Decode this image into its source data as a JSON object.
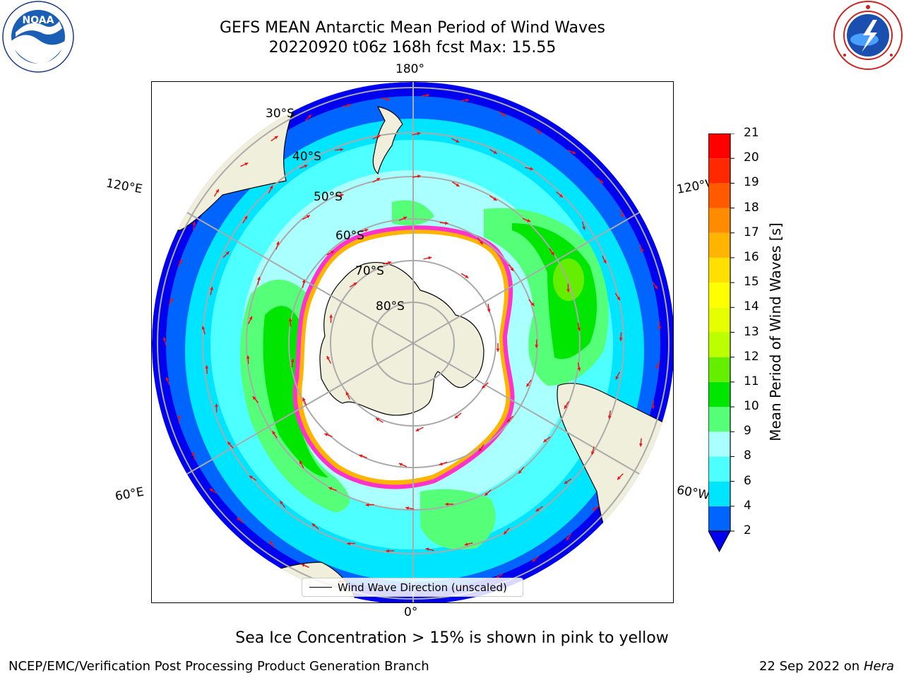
{
  "title_line1": "GEFS MEAN Antarctic Mean Period of Wind Waves",
  "title_line2": "20220920 t06z 168h fcst   Max: 15.55",
  "longitude_labels": {
    "top": "180°",
    "bottom": "0°",
    "upper_left": "120°E",
    "lower_left": "60°E",
    "upper_right": "120°W",
    "lower_right": "60°W"
  },
  "latitude_labels": [
    "30°S",
    "40°S",
    "50°S",
    "60°S",
    "70°S",
    "80°S"
  ],
  "legend": {
    "label": "Wind Wave Direction (unscaled)"
  },
  "colorbar": {
    "label": "Mean Period of Wind Waves [s]",
    "ticks": [
      "21",
      "20",
      "19",
      "18",
      "17",
      "16",
      "15",
      "14",
      "13",
      "12",
      "11",
      "10",
      "9",
      "8",
      "6",
      "4",
      "2"
    ],
    "levels": [
      2,
      4,
      6,
      8,
      9,
      10,
      11,
      12,
      13,
      14,
      15,
      16,
      17,
      18,
      19,
      20,
      21
    ],
    "colors": [
      "#0064ff",
      "#00e5ff",
      "#4dffff",
      "#aaffff",
      "#55ff77",
      "#00e600",
      "#66ee00",
      "#bbff00",
      "#e5ff00",
      "#ffff00",
      "#ffe000",
      "#ffb400",
      "#ff8c00",
      "#ff5a00",
      "#ff2800",
      "#ff0000"
    ],
    "under_color": "#0000ee"
  },
  "colors": {
    "land": "#efefdc",
    "ice_edge": "#ff33cc",
    "arrow": "#ee1111",
    "grid": "#aaaaaa",
    "deep": "#0000ee"
  },
  "caption": "Sea Ice Concentration > 15% is shown in pink to yellow",
  "footer_left": "NCEP/EMC/Verification Post Processing Product Generation Branch",
  "footer_right_date": "22 Sep 2022 on",
  "footer_right_machine": "Hera",
  "logos": {
    "left": "noaa-logo",
    "right": "nws-logo"
  }
}
